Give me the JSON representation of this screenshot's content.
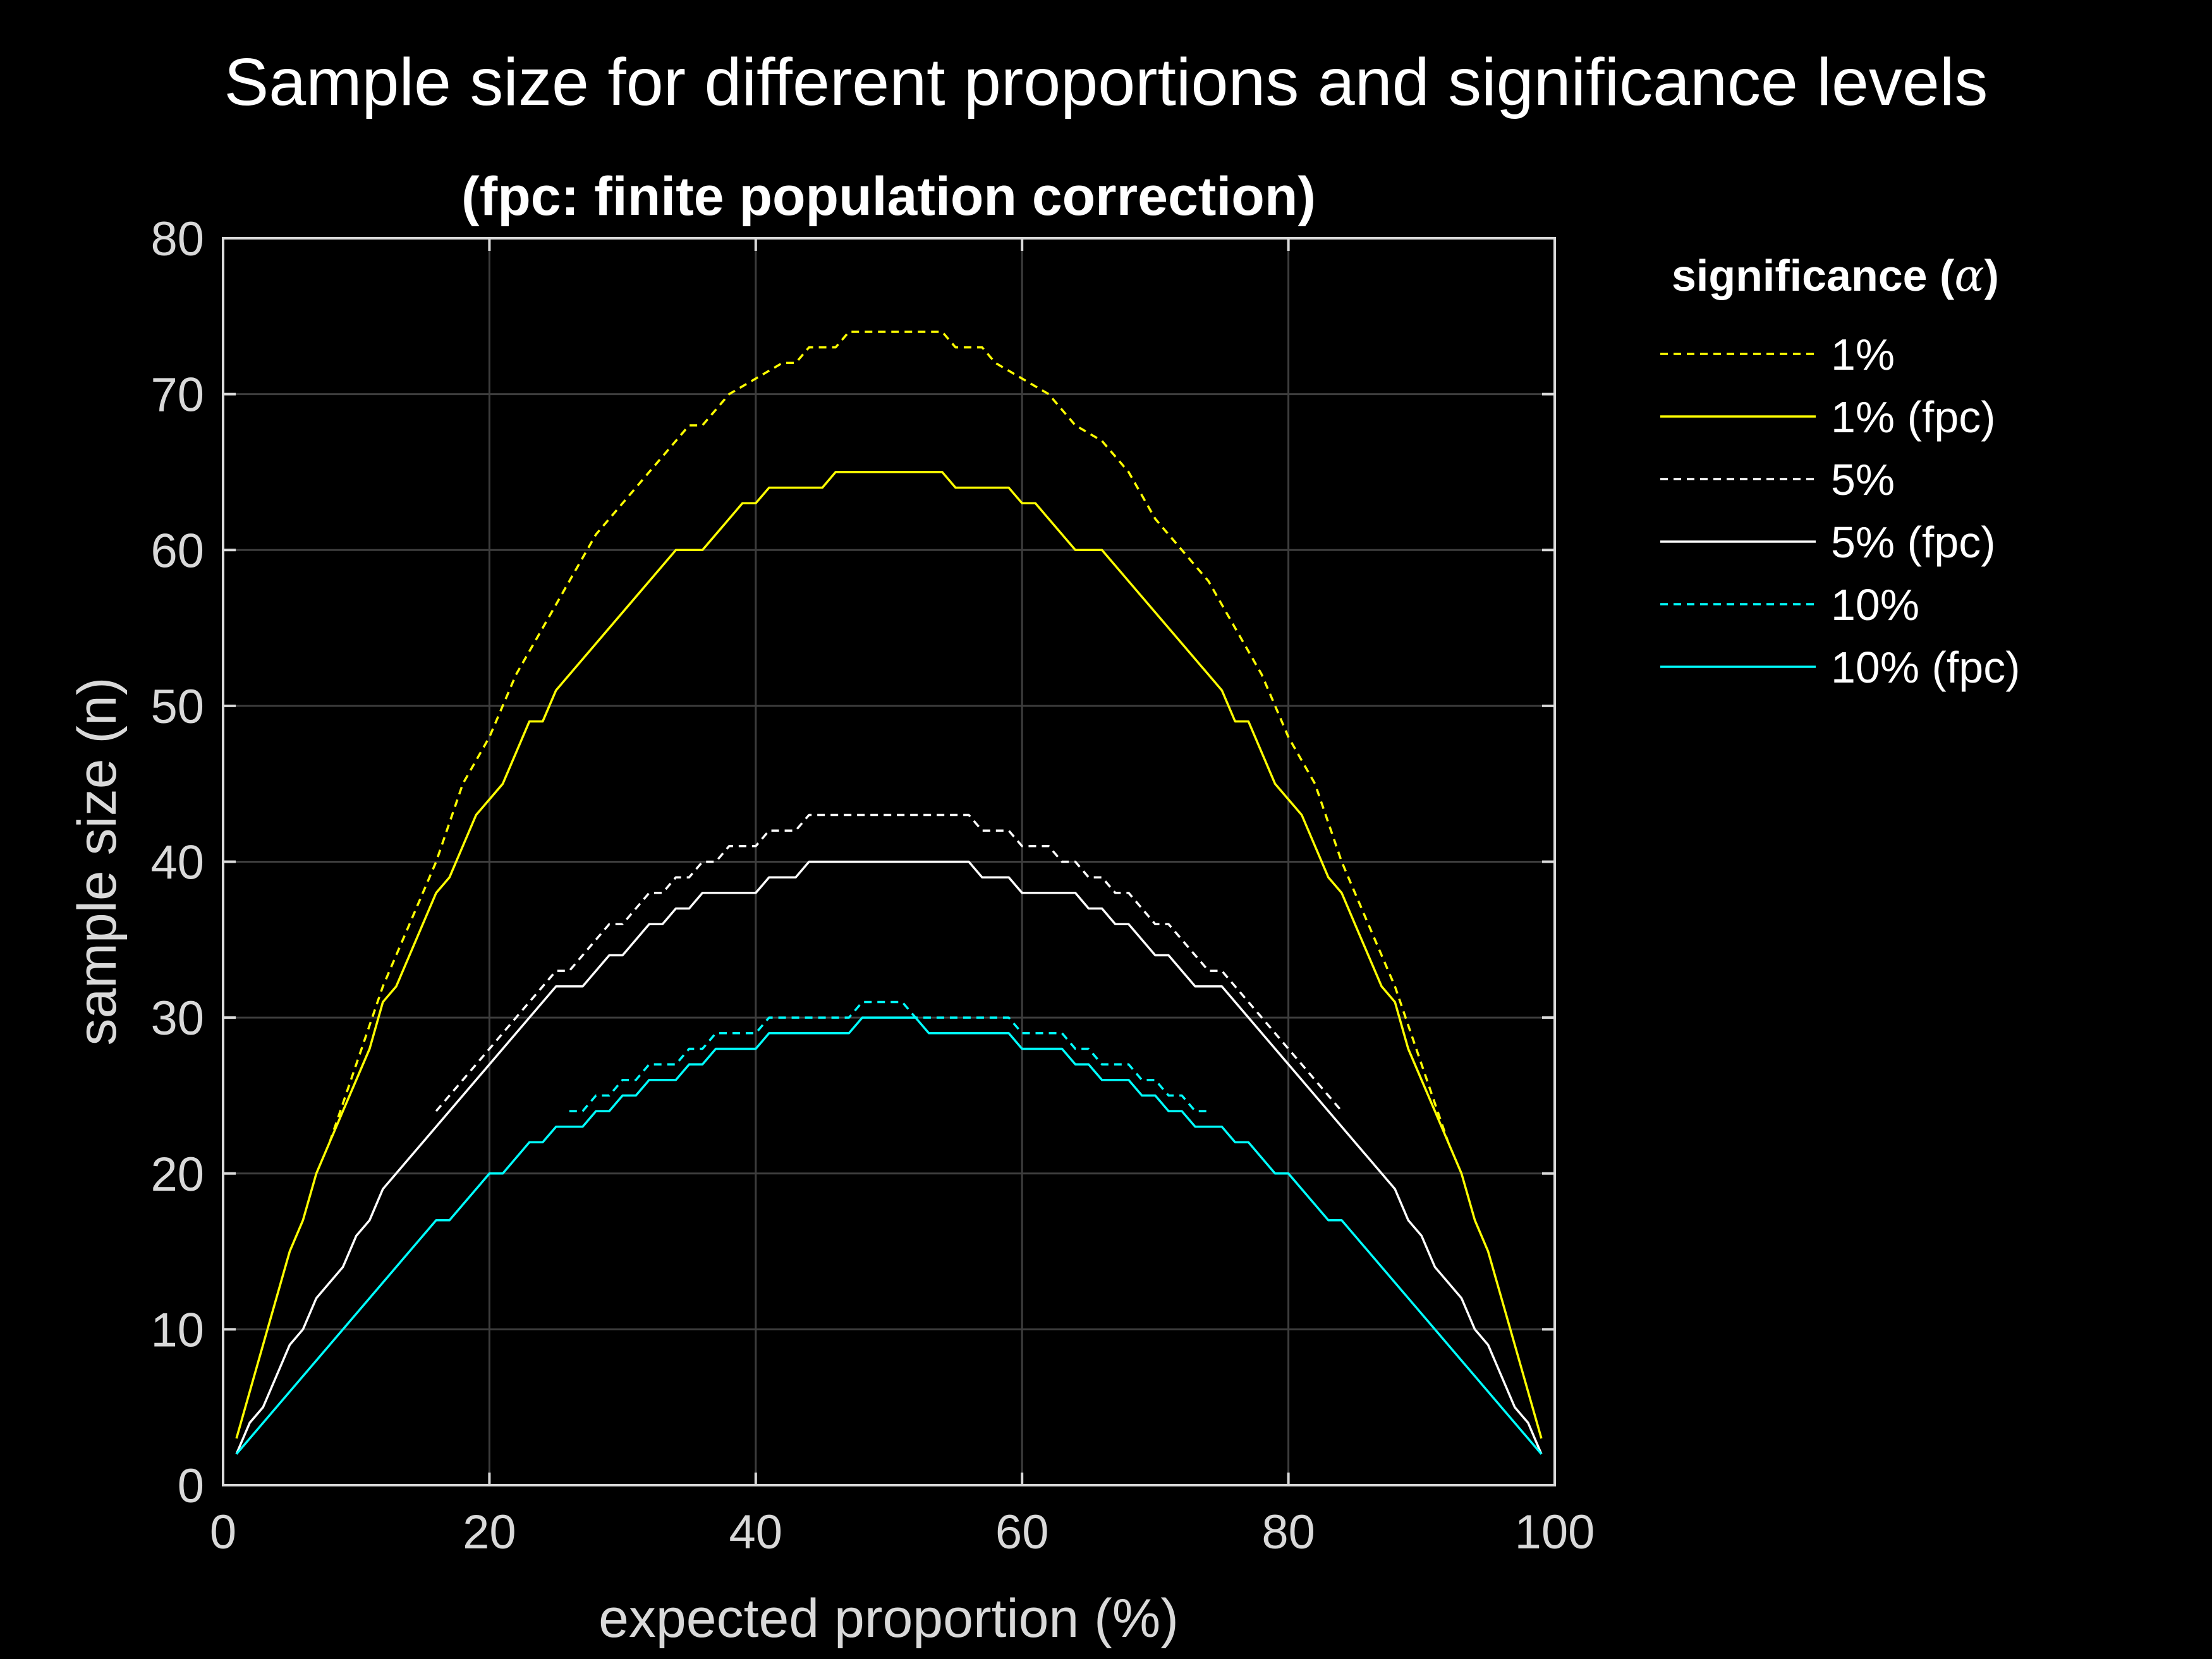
{
  "figure_title": "Sample size for different proportions and significance levels",
  "chart_data": {
    "type": "line",
    "title": "(fpc: finite population correction)",
    "xlabel": "expected proportion (%)",
    "ylabel": "sample size (n)",
    "xlim": [
      0,
      100
    ],
    "ylim": [
      0,
      80
    ],
    "x_ticks": [
      0,
      20,
      40,
      60,
      80,
      100
    ],
    "y_ticks": [
      0,
      10,
      20,
      30,
      40,
      50,
      60,
      70,
      80
    ],
    "x_tick_labels": [
      "0",
      "20",
      "40",
      "60",
      "80",
      "100"
    ],
    "y_tick_labels": [
      "0",
      "10",
      "20",
      "30",
      "40",
      "50",
      "60",
      "70",
      "80"
    ],
    "grid": true,
    "legend": {
      "title_prefix": "significance (",
      "title_symbol": "α",
      "title_suffix": ")",
      "placement": "outside-top-right"
    },
    "series": [
      {
        "name": "1%",
        "color": "#ffff00",
        "style": "dashed",
        "points": [
          [
            8,
            22
          ],
          [
            10,
            27
          ],
          [
            12,
            32
          ],
          [
            14,
            36
          ],
          [
            16,
            40
          ],
          [
            18,
            45
          ],
          [
            20,
            48
          ],
          [
            22,
            52
          ],
          [
            24,
            55
          ],
          [
            26,
            58
          ],
          [
            28,
            61
          ],
          [
            30,
            63
          ],
          [
            32,
            65
          ],
          [
            34,
            67
          ],
          [
            35,
            68
          ],
          [
            36,
            68
          ],
          [
            38,
            70
          ],
          [
            40,
            71
          ],
          [
            42,
            72
          ],
          [
            43,
            72
          ],
          [
            44,
            73
          ],
          [
            46,
            73
          ],
          [
            47,
            74
          ],
          [
            54,
            74
          ],
          [
            55,
            73
          ],
          [
            57,
            73
          ],
          [
            58,
            72
          ],
          [
            60,
            71
          ],
          [
            62,
            70
          ],
          [
            64,
            68
          ],
          [
            66,
            67
          ],
          [
            68,
            65
          ],
          [
            70,
            62
          ],
          [
            72,
            60
          ],
          [
            74,
            58
          ],
          [
            76,
            55
          ],
          [
            78,
            52
          ],
          [
            80,
            48
          ],
          [
            82,
            45
          ],
          [
            84,
            40
          ],
          [
            86,
            36
          ],
          [
            88,
            32
          ],
          [
            90,
            27
          ],
          [
            92,
            22
          ]
        ]
      },
      {
        "name": "1% (fpc)",
        "color": "#ffff00",
        "style": "solid",
        "points": [
          [
            1,
            3
          ],
          [
            3,
            9
          ],
          [
            5,
            15
          ],
          [
            6,
            17
          ],
          [
            7,
            20
          ],
          [
            9,
            24
          ],
          [
            11,
            28
          ],
          [
            12,
            31
          ],
          [
            13,
            32
          ],
          [
            15,
            36
          ],
          [
            16,
            38
          ],
          [
            17,
            39
          ],
          [
            19,
            43
          ],
          [
            21,
            45
          ],
          [
            23,
            49
          ],
          [
            24,
            49
          ],
          [
            25,
            51
          ],
          [
            34,
            60
          ],
          [
            36,
            60
          ],
          [
            39,
            63
          ],
          [
            40,
            63
          ],
          [
            41,
            64
          ],
          [
            45,
            64
          ],
          [
            46,
            65
          ],
          [
            54,
            65
          ],
          [
            55,
            64
          ],
          [
            59,
            64
          ],
          [
            60,
            63
          ],
          [
            61,
            63
          ],
          [
            64,
            60
          ],
          [
            66,
            60
          ],
          [
            75,
            51
          ],
          [
            76,
            49
          ],
          [
            77,
            49
          ],
          [
            79,
            45
          ],
          [
            81,
            43
          ],
          [
            83,
            39
          ],
          [
            84,
            38
          ],
          [
            85,
            36
          ],
          [
            87,
            32
          ],
          [
            88,
            31
          ],
          [
            89,
            28
          ],
          [
            91,
            24
          ],
          [
            93,
            20
          ],
          [
            94,
            17
          ],
          [
            95,
            15
          ],
          [
            97,
            9
          ],
          [
            99,
            3
          ]
        ]
      },
      {
        "name": "5%",
        "color": "#ffffff",
        "style": "dashed",
        "points": [
          [
            16,
            24
          ],
          [
            18,
            26
          ],
          [
            20,
            28
          ],
          [
            22,
            30
          ],
          [
            24,
            32
          ],
          [
            25,
            33
          ],
          [
            26,
            33
          ],
          [
            28,
            35
          ],
          [
            29,
            36
          ],
          [
            30,
            36
          ],
          [
            32,
            38
          ],
          [
            33,
            38
          ],
          [
            34,
            39
          ],
          [
            35,
            39
          ],
          [
            36,
            40
          ],
          [
            37,
            40
          ],
          [
            38,
            41
          ],
          [
            40,
            41
          ],
          [
            41,
            42
          ],
          [
            43,
            42
          ],
          [
            44,
            43
          ],
          [
            56,
            43
          ],
          [
            57,
            42
          ],
          [
            59,
            42
          ],
          [
            60,
            41
          ],
          [
            62,
            41
          ],
          [
            63,
            40
          ],
          [
            64,
            40
          ],
          [
            65,
            39
          ],
          [
            66,
            39
          ],
          [
            67,
            38
          ],
          [
            68,
            38
          ],
          [
            70,
            36
          ],
          [
            71,
            36
          ],
          [
            72,
            35
          ],
          [
            74,
            33
          ],
          [
            75,
            33
          ],
          [
            76,
            32
          ],
          [
            78,
            30
          ],
          [
            80,
            28
          ],
          [
            82,
            26
          ],
          [
            84,
            24
          ]
        ]
      },
      {
        "name": "5% (fpc)",
        "color": "#ffffff",
        "style": "solid",
        "points": [
          [
            1,
            2
          ],
          [
            2,
            4
          ],
          [
            3,
            5
          ],
          [
            5,
            9
          ],
          [
            6,
            10
          ],
          [
            7,
            12
          ],
          [
            9,
            14
          ],
          [
            10,
            16
          ],
          [
            11,
            17
          ],
          [
            12,
            19
          ],
          [
            25,
            32
          ],
          [
            27,
            32
          ],
          [
            29,
            34
          ],
          [
            30,
            34
          ],
          [
            32,
            36
          ],
          [
            33,
            36
          ],
          [
            34,
            37
          ],
          [
            35,
            37
          ],
          [
            36,
            38
          ],
          [
            40,
            38
          ],
          [
            41,
            39
          ],
          [
            43,
            39
          ],
          [
            44,
            40
          ],
          [
            56,
            40
          ],
          [
            57,
            39
          ],
          [
            59,
            39
          ],
          [
            60,
            38
          ],
          [
            64,
            38
          ],
          [
            65,
            37
          ],
          [
            66,
            37
          ],
          [
            67,
            36
          ],
          [
            68,
            36
          ],
          [
            70,
            34
          ],
          [
            71,
            34
          ],
          [
            73,
            32
          ],
          [
            75,
            32
          ],
          [
            88,
            19
          ],
          [
            89,
            17
          ],
          [
            90,
            16
          ],
          [
            91,
            14
          ],
          [
            93,
            12
          ],
          [
            94,
            10
          ],
          [
            95,
            9
          ],
          [
            97,
            5
          ],
          [
            98,
            4
          ],
          [
            99,
            2
          ]
        ]
      },
      {
        "name": "10%",
        "color": "#00ffff",
        "style": "dashed",
        "points": [
          [
            26,
            24
          ],
          [
            27,
            24
          ],
          [
            28,
            25
          ],
          [
            29,
            25
          ],
          [
            30,
            26
          ],
          [
            31,
            26
          ],
          [
            32,
            27
          ],
          [
            34,
            27
          ],
          [
            35,
            28
          ],
          [
            36,
            28
          ],
          [
            37,
            29
          ],
          [
            40,
            29
          ],
          [
            41,
            30
          ],
          [
            47,
            30
          ],
          [
            48,
            31
          ],
          [
            51,
            31
          ],
          [
            52,
            30
          ],
          [
            59,
            30
          ],
          [
            60,
            29
          ],
          [
            63,
            29
          ],
          [
            64,
            28
          ],
          [
            65,
            28
          ],
          [
            66,
            27
          ],
          [
            68,
            27
          ],
          [
            69,
            26
          ],
          [
            70,
            26
          ],
          [
            71,
            25
          ],
          [
            72,
            25
          ],
          [
            73,
            24
          ],
          [
            74,
            24
          ]
        ]
      },
      {
        "name": "10% (fpc)",
        "color": "#00ffff",
        "style": "solid",
        "points": [
          [
            1,
            2
          ],
          [
            16,
            17
          ],
          [
            17,
            17
          ],
          [
            20,
            20
          ],
          [
            21,
            20
          ],
          [
            23,
            22
          ],
          [
            24,
            22
          ],
          [
            25,
            23
          ],
          [
            27,
            23
          ],
          [
            28,
            24
          ],
          [
            29,
            24
          ],
          [
            30,
            25
          ],
          [
            31,
            25
          ],
          [
            32,
            26
          ],
          [
            34,
            26
          ],
          [
            35,
            27
          ],
          [
            36,
            27
          ],
          [
            37,
            28
          ],
          [
            40,
            28
          ],
          [
            41,
            29
          ],
          [
            47,
            29
          ],
          [
            48,
            30
          ],
          [
            52,
            30
          ],
          [
            53,
            29
          ],
          [
            59,
            29
          ],
          [
            60,
            28
          ],
          [
            63,
            28
          ],
          [
            64,
            27
          ],
          [
            65,
            27
          ],
          [
            66,
            26
          ],
          [
            68,
            26
          ],
          [
            69,
            25
          ],
          [
            70,
            25
          ],
          [
            71,
            24
          ],
          [
            72,
            24
          ],
          [
            73,
            23
          ],
          [
            75,
            23
          ],
          [
            76,
            22
          ],
          [
            77,
            22
          ],
          [
            79,
            20
          ],
          [
            80,
            20
          ],
          [
            83,
            17
          ],
          [
            84,
            17
          ],
          [
            99,
            2
          ]
        ]
      }
    ]
  }
}
